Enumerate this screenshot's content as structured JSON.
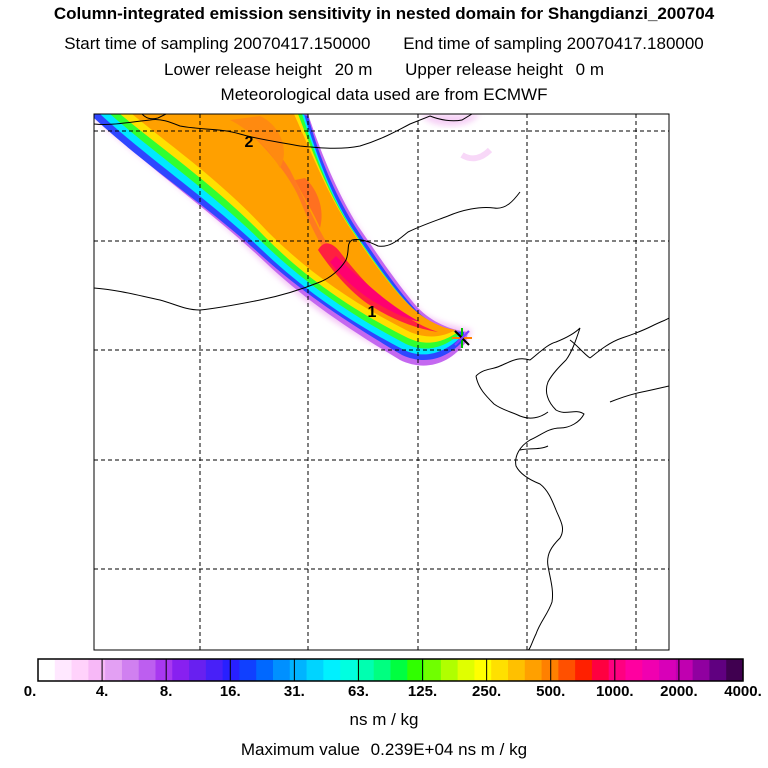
{
  "header": {
    "title": "Column-integrated emission sensitivity in nested domain for Shangdianzi_200704",
    "start_label": "Start time of sampling",
    "start_value": "20070417.150000",
    "end_label": "End time of sampling",
    "end_value": "20070417.180000",
    "lower_label": "Lower release height",
    "lower_value": "20 m",
    "upper_label": "Upper release height",
    "upper_value": "0 m",
    "met_line": "Meteorological data used are from ECMWF"
  },
  "map": {
    "markers": [
      {
        "label": "1"
      },
      {
        "label": "2"
      }
    ],
    "release_site": "star-marker"
  },
  "colorbar": {
    "colors": [
      "#ffffff",
      "#ffe8ff",
      "#ffd2fb",
      "#f7b8f7",
      "#e3a0f3",
      "#d080f0",
      "#bd5ef0",
      "#a838f0",
      "#8820f0",
      "#6820f0",
      "#4820f8",
      "#2820ff",
      "#1040ff",
      "#0068ff",
      "#0090ff",
      "#00b4ff",
      "#00d4ff",
      "#00f0ff",
      "#00ffe0",
      "#00ffb0",
      "#00ff80",
      "#00ff40",
      "#30ff00",
      "#70ff00",
      "#b0ff00",
      "#e0ff00",
      "#ffff00",
      "#ffe000",
      "#ffc000",
      "#ffa000",
      "#ff8000",
      "#ff5000",
      "#ff2000",
      "#ff0040",
      "#ff0080",
      "#ff00a0",
      "#f000b0",
      "#d800b8",
      "#c000b0",
      "#9000a0",
      "#600080",
      "#400050"
    ],
    "ticks": [
      "0.",
      "4.",
      "8.",
      "16.",
      "31.",
      "63.",
      "125.",
      "250.",
      "500.",
      "1000.",
      "2000.",
      "4000."
    ],
    "units": "ns m / kg"
  },
  "footer": {
    "max_label": "Maximum value",
    "max_value": "0.239E+04",
    "max_units": "ns m / kg"
  }
}
